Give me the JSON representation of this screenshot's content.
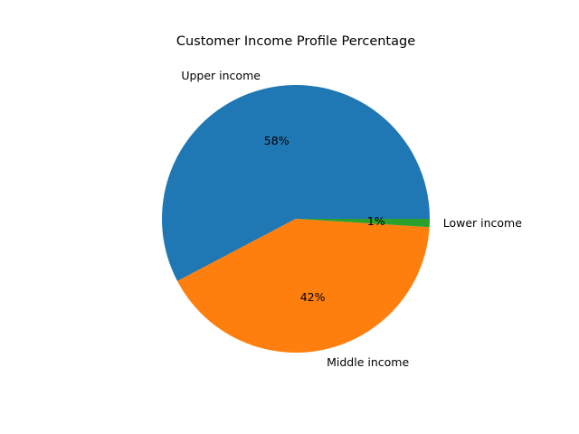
{
  "chart_data": {
    "type": "pie",
    "title": "Customer Income Profile Percentage",
    "slices": [
      {
        "label": "Upper income",
        "value": 58,
        "pct_label": "58%",
        "color": "#1f77b4"
      },
      {
        "label": "Middle income",
        "value": 41.5,
        "pct_label": "42%",
        "color": "#ff7f0e"
      },
      {
        "label": "Lower income",
        "value": 1,
        "pct_label": "1%",
        "color": "#2ca02c"
      }
    ],
    "start_angle": "3 o'clock",
    "direction": "counterclockwise",
    "legend": "none",
    "grid": false
  }
}
